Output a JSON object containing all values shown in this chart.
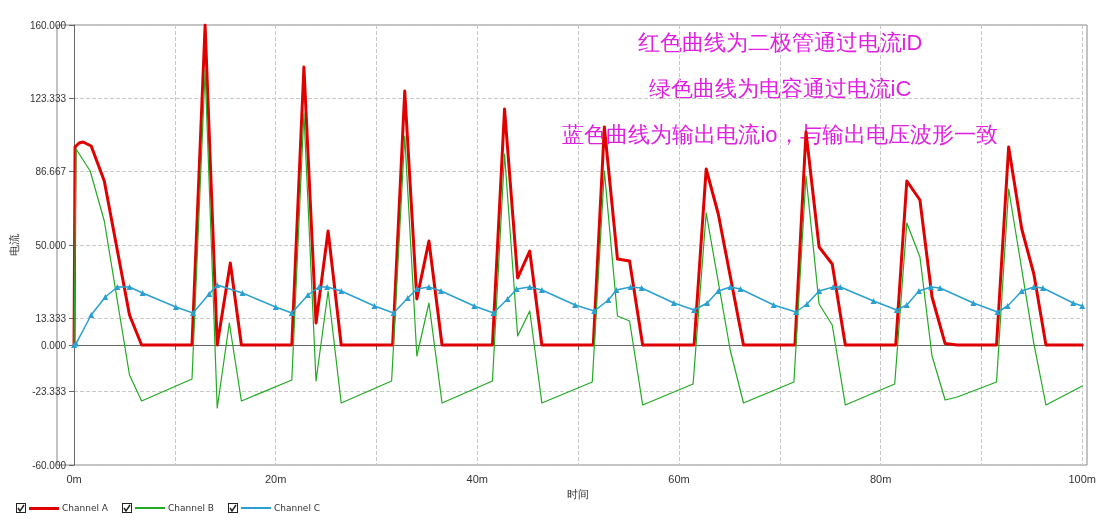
{
  "chart_data": {
    "type": "line",
    "xlabel": "时间",
    "ylabel": "电流",
    "annotations": [
      "红色曲线为二极管通过电流iD",
      "绿色曲线为电容通过电流iC",
      "蓝色曲线为输出电流io，与输出电压波形一致"
    ],
    "xlim": [
      0,
      100
    ],
    "xticks": [
      {
        "value": 0,
        "label": "0m"
      },
      {
        "value": 10,
        "label": null
      },
      {
        "value": 20,
        "label": "20m"
      },
      {
        "value": 30,
        "label": null
      },
      {
        "value": 40,
        "label": "40m"
      },
      {
        "value": 50,
        "label": null
      },
      {
        "value": 60,
        "label": "60m"
      },
      {
        "value": 70,
        "label": null
      },
      {
        "value": 80,
        "label": "80m"
      },
      {
        "value": 90,
        "label": null
      },
      {
        "value": 100,
        "label": "100m"
      }
    ],
    "ylim": [
      -60,
      160
    ],
    "yticks": [
      {
        "value": -60,
        "label": "-60.000"
      },
      {
        "value": -23.333,
        "label": "-23.333"
      },
      {
        "value": 0,
        "label": "0.000"
      },
      {
        "value": 13.333,
        "label": "13.333"
      },
      {
        "value": 50,
        "label": "50.000"
      },
      {
        "value": 86.667,
        "label": "86.667"
      },
      {
        "value": 123.333,
        "label": "123.333"
      },
      {
        "value": 160,
        "label": "160.000"
      }
    ],
    "grid": true,
    "legend": "bottom left",
    "marker": "none",
    "line_style": "solid",
    "series": [
      {
        "name": "Channel A",
        "color": "#e00000",
        "x": [
          0,
          0.1,
          0.5,
          0.9,
          1.7,
          3.0,
          5.5,
          6.7,
          11.7,
          13.0,
          14.2,
          15.5,
          16.6,
          21.6,
          22.8,
          24.0,
          25.2,
          26.5,
          31.6,
          32.8,
          34.0,
          35.2,
          36.5,
          41.5,
          42.7,
          44.0,
          45.2,
          46.4,
          51.5,
          52.6,
          53.9,
          55.1,
          56.4,
          61.5,
          62.7,
          63.9,
          66.4,
          71.5,
          72.6,
          73.9,
          75.2,
          76.5,
          81.5,
          82.6,
          83.9,
          85.1,
          86.4,
          87.6,
          91.5,
          92.7,
          94.0,
          95.2,
          96.4,
          100
        ],
        "values": [
          0,
          99,
          101,
          101.5,
          99.5,
          82,
          15,
          0,
          0,
          160,
          0,
          41,
          0,
          0,
          139,
          11,
          57,
          0,
          0,
          127,
          23,
          52,
          0,
          0,
          118,
          33.5,
          47,
          0,
          0,
          109,
          43,
          42,
          0,
          0,
          88,
          65.5,
          0,
          0,
          106.5,
          49,
          40.5,
          0,
          0,
          82,
          72.5,
          24,
          0.7,
          0,
          0,
          99,
          58,
          35.5,
          0,
          0
        ]
      },
      {
        "name": "Channel B",
        "color": "#22aa22",
        "x": [
          0,
          0.2,
          1.6,
          3.0,
          5.5,
          6.7,
          11.7,
          13.0,
          14.2,
          15.4,
          16.6,
          21.6,
          22.8,
          24.0,
          25.2,
          26.5,
          31.5,
          32.8,
          34.0,
          35.2,
          36.5,
          41.5,
          42.7,
          44.0,
          45.2,
          46.4,
          51.4,
          52.6,
          53.9,
          55.1,
          56.4,
          61.4,
          62.7,
          65.1,
          66.4,
          71.4,
          72.6,
          73.9,
          75.2,
          76.5,
          81.4,
          82.6,
          83.9,
          85.1,
          86.4,
          87.6,
          91.5,
          92.7,
          95.2,
          96.4,
          100
        ],
        "values": [
          0,
          98,
          87,
          62,
          -15,
          -28,
          -17,
          137.5,
          -31.5,
          11,
          -28,
          -17.5,
          116,
          -18,
          27,
          -29,
          -18,
          104.5,
          -5.5,
          21,
          -29,
          -18,
          95.5,
          4.5,
          17,
          -29,
          -18.5,
          87,
          14.5,
          12,
          -30,
          -19.5,
          66,
          -3,
          -29,
          -18.5,
          84.5,
          20.5,
          10,
          -30,
          -19.5,
          61,
          44,
          -5.5,
          -27.5,
          -26,
          -18.5,
          78,
          0.7,
          -30,
          -20.5
        ]
      },
      {
        "name": "Channel C",
        "color": "#2aa0d0",
        "marker": "triangle",
        "x": [
          0,
          0.2,
          1.7,
          3.1,
          4.3,
          5.5,
          6.8,
          10.1,
          11.8,
          13.4,
          14.2,
          16.7,
          20.0,
          21.6,
          23.2,
          24.3,
          25.1,
          26.5,
          29.8,
          31.7,
          33.1,
          34.0,
          35.2,
          36.4,
          39.7,
          41.6,
          43.0,
          43.9,
          45.2,
          46.4,
          49.7,
          51.6,
          53.0,
          53.8,
          55.2,
          56.3,
          59.5,
          61.5,
          62.8,
          63.9,
          65.1,
          66.1,
          69.4,
          71.6,
          72.7,
          73.9,
          75.3,
          76.0,
          79.3,
          81.6,
          82.6,
          83.8,
          85.0,
          85.9,
          89.2,
          91.6,
          92.6,
          94.0,
          95.2,
          96.1,
          99.1,
          100
        ],
        "values": [
          0,
          0.7,
          15,
          24,
          29,
          29,
          26,
          19,
          16,
          25.5,
          30,
          26,
          19,
          16,
          25,
          29,
          29,
          27,
          19.5,
          16,
          23.5,
          28,
          29,
          27,
          19.5,
          16,
          23,
          28,
          29,
          27.5,
          20,
          17,
          22.5,
          27.5,
          29,
          28.5,
          21,
          17.5,
          21,
          27,
          29,
          28,
          20,
          16.5,
          20.5,
          27,
          29,
          29,
          22,
          17.5,
          20,
          27,
          29,
          28.5,
          21,
          16.5,
          19.5,
          27,
          29,
          28.5,
          21,
          19.5
        ]
      }
    ]
  }
}
